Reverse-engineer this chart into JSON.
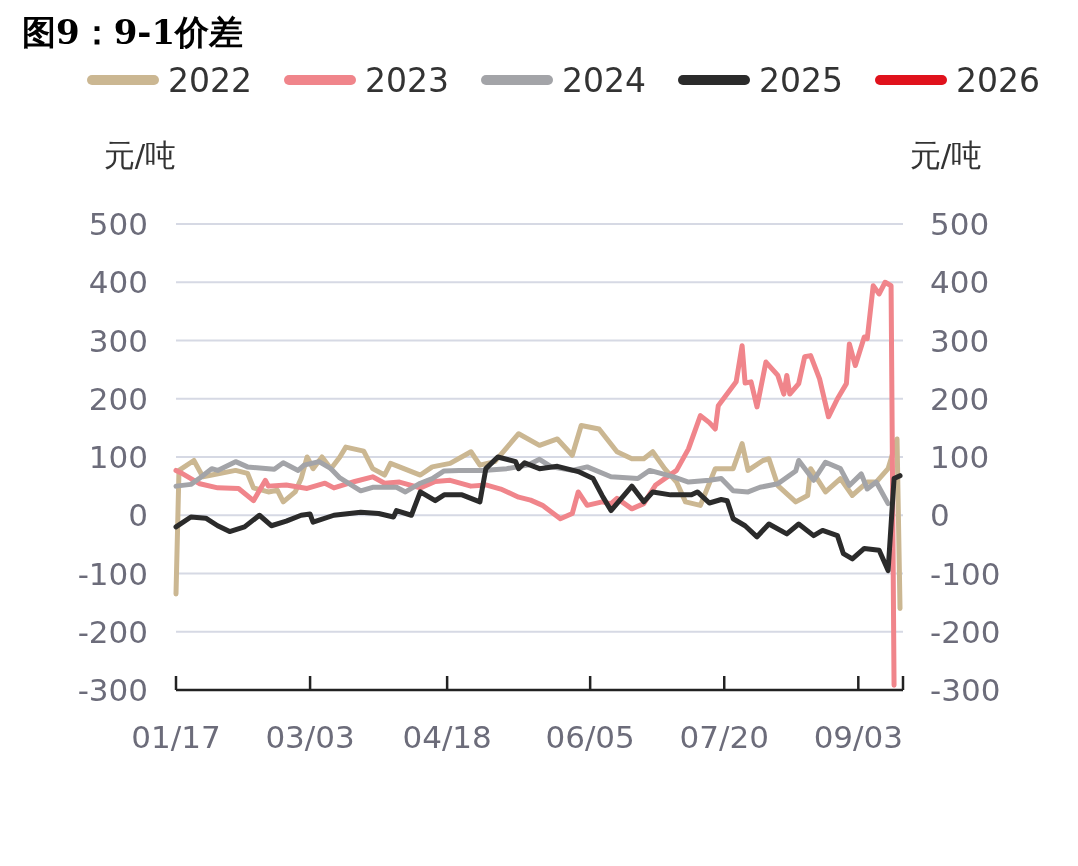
{
  "chart_data": {
    "type": "line",
    "title": "图9：9-1价差",
    "ylabel": "元/吨",
    "y2label": "元/吨",
    "xlim": [
      "--01-17",
      "--09-18"
    ],
    "xticks": [
      {
        "value": "--01-17",
        "label": "01/17"
      },
      {
        "value": "--03-03",
        "label": "03/03"
      },
      {
        "value": "--04-18",
        "label": "04/18"
      },
      {
        "value": "--06-05",
        "label": "06/05"
      },
      {
        "value": "--07-20",
        "label": "07/20"
      },
      {
        "value": "--09-03",
        "label": "09/03"
      }
    ],
    "ylim": [
      -300,
      500
    ],
    "yticks": [
      -300,
      -200,
      -100,
      0,
      100,
      200,
      300,
      400,
      500
    ],
    "y2lim": [
      -300,
      500
    ],
    "y2ticks": [
      -300,
      -200,
      -100,
      0,
      100,
      200,
      300,
      400,
      500
    ],
    "grid": "y",
    "legend": "top",
    "series": [
      {
        "name": "2022",
        "color": "#cbb792",
        "x": [
          "--01-17",
          "--01-18",
          "--01-23",
          "--01-26",
          "--01-29",
          "--02-06",
          "--02-10",
          "--02-12",
          "--02-17",
          "--02-20",
          "--02-22",
          "--02-26",
          "--02-28",
          "--03-02",
          "--03-04",
          "--03-07",
          "--03-10",
          "--03-13",
          "--03-15",
          "--03-21",
          "--03-24",
          "--03-28",
          "--03-30",
          "--04-02",
          "--04-09",
          "--04-13",
          "--04-19",
          "--04-26",
          "--04-29",
          "--05-04",
          "--05-12",
          "--05-19",
          "--05-25",
          "--05-30",
          "--06-02",
          "--06-08",
          "--06-14",
          "--06-19",
          "--06-23",
          "--06-26",
          "--06-30",
          "--07-04",
          "--07-07",
          "--07-12",
          "--07-15",
          "--07-17",
          "--07-23",
          "--07-26",
          "--07-28",
          "--08-02",
          "--08-04",
          "--08-07",
          "--08-13",
          "--08-17",
          "--08-18",
          "--08-23",
          "--08-28",
          "--09-01",
          "--09-06",
          "--09-09",
          "--09-13",
          "--09-16",
          "--09-17"
        ],
        "values": [
          -135,
          77,
          94,
          66,
          69,
          77,
          72,
          47,
          40,
          43,
          23,
          40,
          63,
          100,
          80,
          100,
          80,
          100,
          117,
          110,
          80,
          69,
          89,
          83,
          69,
          83,
          89,
          109,
          86,
          92,
          140,
          120,
          131,
          103,
          154,
          148,
          109,
          97,
          97,
          109,
          80,
          57,
          23,
          17,
          55,
          80,
          80,
          123,
          77,
          94,
          97,
          51,
          23,
          34,
          80,
          40,
          63,
          34,
          57,
          57,
          80,
          131,
          -160
        ]
      },
      {
        "name": "2023",
        "color": "#f0858b",
        "x": [
          "--01-17",
          "--01-19",
          "--01-25",
          "--01-31",
          "--02-07",
          "--02-12",
          "--02-16",
          "--02-17",
          "--02-23",
          "--03-02",
          "--03-08",
          "--03-11",
          "--03-18",
          "--03-24",
          "--03-28",
          "--04-02",
          "--04-09",
          "--04-14",
          "--04-19",
          "--04-26",
          "--05-01",
          "--05-06",
          "--05-12",
          "--05-16",
          "--05-20",
          "--05-26",
          "--05-30",
          "--06-01",
          "--06-04",
          "--06-09",
          "--06-12",
          "--06-14",
          "--06-19",
          "--06-23",
          "--06-27",
          "--07-04",
          "--07-08",
          "--07-12",
          "--07-15",
          "--07-17",
          "--07-18",
          "--07-24",
          "--07-26",
          "--07-27",
          "--07-29",
          "--07-31",
          "--08-03",
          "--08-07",
          "--08-09",
          "--08-10",
          "--08-11",
          "--08-14",
          "--08-16",
          "--08-18",
          "--08-21",
          "--08-24",
          "--08-27",
          "--08-30",
          "--08-31",
          "--09-02",
          "--09-05",
          "--09-06",
          "--09-08",
          "--09-10",
          "--09-12",
          "--09-14",
          "--09-15"
        ],
        "values": [
          77,
          72,
          54,
          47,
          46,
          25,
          60,
          50,
          52,
          46,
          55,
          47,
          58,
          66,
          55,
          57,
          47,
          58,
          60,
          50,
          52,
          45,
          31,
          26,
          17,
          -6,
          3,
          40,
          17,
          23,
          20,
          29,
          11,
          20,
          52,
          77,
          114,
          171,
          159,
          148,
          188,
          229,
          291,
          227,
          229,
          186,
          263,
          240,
          208,
          240,
          208,
          226,
          272,
          274,
          234,
          169,
          200,
          226,
          294,
          257,
          306,
          303,
          394,
          380,
          400,
          394,
          -292
        ]
      },
      {
        "name": "2024",
        "color": "#a3a4a8",
        "x": [
          "--01-17",
          "--01-22",
          "--01-25",
          "--01-29",
          "--01-31",
          "--02-06",
          "--02-10",
          "--02-19",
          "--02-22",
          "--02-27",
          "--03-01",
          "--03-06",
          "--03-10",
          "--03-13",
          "--03-20",
          "--03-24",
          "--04-01",
          "--04-04",
          "--04-09",
          "--04-13",
          "--04-17",
          "--04-22",
          "--04-30",
          "--05-08",
          "--05-15",
          "--05-19",
          "--05-23",
          "--05-30",
          "--06-04",
          "--06-12",
          "--06-21",
          "--06-25",
          "--07-03",
          "--07-08",
          "--07-15",
          "--07-19",
          "--07-23",
          "--07-28",
          "--08-01",
          "--08-07",
          "--08-13",
          "--08-14",
          "--08-19",
          "--08-23",
          "--08-28",
          "--08-31",
          "--09-04",
          "--09-06",
          "--09-09",
          "--09-13"
        ],
        "values": [
          50,
          53,
          64,
          80,
          77,
          92,
          83,
          79,
          90,
          77,
          86,
          92,
          80,
          64,
          42,
          48,
          48,
          40,
          55,
          63,
          76,
          77,
          77,
          80,
          86,
          96,
          83,
          77,
          83,
          66,
          63,
          77,
          66,
          57,
          60,
          63,
          42,
          40,
          48,
          54,
          76,
          94,
          60,
          91,
          80,
          51,
          71,
          45,
          57,
          20
        ]
      },
      {
        "name": "2025",
        "color": "#2b2b2b",
        "x": [
          "--01-17",
          "--01-22",
          "--01-27",
          "--01-31",
          "--02-04",
          "--02-09",
          "--02-14",
          "--02-18",
          "--02-23",
          "--02-28",
          "--03-03",
          "--03-04",
          "--03-11",
          "--03-20",
          "--03-26",
          "--03-31",
          "--04-01",
          "--04-06",
          "--04-09",
          "--04-14",
          "--04-17",
          "--04-23",
          "--04-29",
          "--05-01",
          "--05-05",
          "--05-11",
          "--05-12",
          "--05-14",
          "--05-19",
          "--05-25",
          "--06-01",
          "--06-06",
          "--06-09",
          "--06-12",
          "--06-19",
          "--06-23",
          "--06-26",
          "--07-02",
          "--07-09",
          "--07-11",
          "--07-15",
          "--07-19",
          "--07-21",
          "--07-23",
          "--07-27",
          "--07-31",
          "--08-04",
          "--08-10",
          "--08-14",
          "--08-19",
          "--08-22",
          "--08-27",
          "--08-29",
          "--09-01",
          "--09-05",
          "--09-10",
          "--09-13",
          "--09-15",
          "--09-17"
        ],
        "values": [
          -20,
          -3,
          -5,
          -18,
          -28,
          -20,
          0,
          -18,
          -10,
          0,
          2,
          -12,
          0,
          5,
          3,
          -3,
          8,
          0,
          40,
          25,
          35,
          35,
          23,
          80,
          100,
          92,
          80,
          90,
          80,
          84,
          75,
          63,
          34,
          8,
          50,
          23,
          40,
          35,
          35,
          40,
          21,
          27,
          25,
          -6,
          -18,
          -37,
          -15,
          -32,
          -15,
          -35,
          -26,
          -35,
          -66,
          -75,
          -57,
          -60,
          -95,
          63,
          68
        ]
      },
      {
        "name": "2026",
        "color": "#e0121c"
      }
    ]
  }
}
